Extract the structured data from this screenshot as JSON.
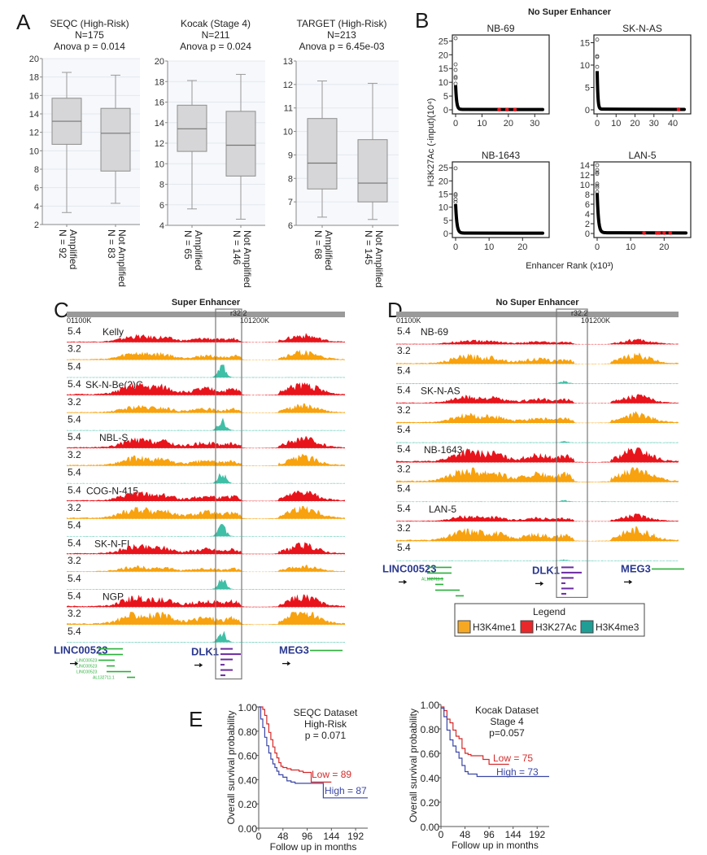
{
  "figure": {
    "panels": {
      "A": "A",
      "B": "B",
      "C": "C",
      "D": "D",
      "E": "E"
    }
  },
  "chart_data": [
    {
      "id": "A1",
      "type": "box",
      "title_lines": [
        "SEQC (High-Risk)",
        "N=175",
        "Anova p = 0.014"
      ],
      "ylim": [
        2,
        20
      ],
      "yticks": [
        2,
        4,
        6,
        8,
        10,
        12,
        14,
        16,
        18,
        20
      ],
      "grid": true,
      "groups": [
        {
          "label": "Amplified",
          "n_label": "N = 92",
          "min": 3.3,
          "q1": 10.7,
          "median": 13.2,
          "q3": 15.7,
          "max": 18.5
        },
        {
          "label": "Not Amplified",
          "n_label": "N = 83",
          "min": 4.3,
          "q1": 7.8,
          "median": 11.9,
          "q3": 14.6,
          "max": 18.2
        }
      ]
    },
    {
      "id": "A2",
      "type": "box",
      "title_lines": [
        "Kocak (Stage 4)",
        "N=211",
        "Anova p = 0.024"
      ],
      "ylim": [
        4,
        20
      ],
      "yticks": [
        4,
        6,
        8,
        10,
        12,
        14,
        16,
        18,
        20
      ],
      "grid": true,
      "groups": [
        {
          "label": "Amplified",
          "n_label": "N = 65",
          "min": 5.6,
          "q1": 11.2,
          "median": 13.4,
          "q3": 15.7,
          "max": 18.1
        },
        {
          "label": "Not Amplified",
          "n_label": "N = 146",
          "min": 4.6,
          "q1": 8.8,
          "median": 11.8,
          "q3": 15.1,
          "max": 18.7
        }
      ]
    },
    {
      "id": "A3",
      "type": "box",
      "title_lines": [
        "TARGET (High-Risk)",
        "N=213",
        "Anova p = 6.45e-03"
      ],
      "ylim": [
        6,
        13
      ],
      "yticks": [
        6,
        7,
        8,
        9,
        10,
        11,
        12,
        13
      ],
      "grid": true,
      "groups": [
        {
          "label": "Amplified",
          "n_label": "N = 68",
          "min": 6.35,
          "q1": 7.55,
          "median": 8.65,
          "q3": 10.55,
          "max": 12.15
        },
        {
          "label": "Not Amplified",
          "n_label": "N = 145",
          "min": 6.25,
          "q1": 7.0,
          "median": 7.8,
          "q3": 9.65,
          "max": 12.05
        }
      ]
    },
    {
      "id": "B",
      "type": "scatter",
      "title": "No Super Enhancer",
      "ylabel": "H3K27Ac (-input)(10⁴)",
      "xlabel": "Enhancer Rank (x10³)",
      "subplots": [
        {
          "name": "NB-69",
          "xlim": [
            0,
            33
          ],
          "xticks": [
            0,
            10,
            20,
            30
          ],
          "ylim": [
            0,
            26
          ],
          "yticks": [
            0,
            5,
            10,
            15,
            20,
            25
          ],
          "outliers": [
            26,
            16.5,
            14.5,
            12,
            11.5,
            9.5
          ],
          "knee_max": 8.8,
          "xmax": 33,
          "highlight_x": [
            16.5,
            19.5,
            22.5
          ]
        },
        {
          "name": "SK-N-AS",
          "xlim": [
            0,
            46
          ],
          "xticks": [
            0,
            10,
            20,
            30,
            40
          ],
          "ylim": [
            0,
            16
          ],
          "yticks": [
            0,
            5,
            10,
            15
          ],
          "outliers": [
            15.7,
            12,
            11.8,
            9.6
          ],
          "knee_max": 8.5,
          "xmax": 46,
          "highlight_x": [
            43
          ]
        },
        {
          "name": "NB-1643",
          "xlim": [
            0,
            26
          ],
          "xticks": [
            0,
            10,
            20
          ],
          "ylim": [
            0,
            26
          ],
          "yticks": [
            0,
            5,
            10,
            15,
            20,
            25
          ],
          "outliers": [
            24.8,
            15,
            14.5,
            13,
            12
          ],
          "knee_max": 11,
          "xmax": 26,
          "highlight_x": []
        },
        {
          "name": "LAN-5",
          "xlim": [
            0,
            26
          ],
          "xticks": [
            0,
            10,
            20
          ],
          "ylim": [
            0,
            14
          ],
          "yticks": [
            0,
            2,
            4,
            6,
            8,
            10,
            12,
            14
          ],
          "outliers": [
            14,
            13,
            12.5,
            12.2,
            10.2,
            9.8,
            9.4,
            8.5
          ],
          "knee_max": 8.2,
          "xmax": 26.5,
          "highlight_x": [
            14,
            17.8,
            18.5,
            20,
            21.8
          ]
        }
      ]
    },
    {
      "id": "C",
      "type": "area",
      "title": "Super Enhancer",
      "ruler": {
        "left_label": "01100K",
        "mid_label": "101200K",
        "band_label": "r32.2"
      },
      "samples": [
        {
          "name": "Kelly",
          "scales": [
            "5.4",
            "3.2",
            "5.4"
          ],
          "strength": [
            0.55,
            0.6,
            1.0
          ]
        },
        {
          "name": "SK-N-Be(2)C",
          "scales": [
            "5.4",
            "3.2",
            "5.4"
          ],
          "strength": [
            0.9,
            0.55,
            0.9
          ]
        },
        {
          "name": "NBL-S",
          "scales": [
            "5.4",
            "3.2",
            "5.4"
          ],
          "strength": [
            0.75,
            0.7,
            0.85
          ]
        },
        {
          "name": "COG-N-415",
          "scales": [
            "5.4",
            "3.2",
            "5.4"
          ],
          "strength": [
            0.7,
            0.9,
            0.9
          ]
        },
        {
          "name": "SK-N-FI",
          "scales": [
            "5.4",
            "3.2",
            "5.4"
          ],
          "strength": [
            0.7,
            0.45,
            1.0
          ]
        },
        {
          "name": "NGP",
          "scales": [
            "5.4",
            "3.2",
            "5.4"
          ],
          "strength": [
            0.85,
            1.0,
            0.8
          ]
        }
      ],
      "genes": {
        "left": "LINC00523",
        "center": "DLK1",
        "right": "MEG3",
        "small_labels": [
          "LINC00523",
          "LINC00523",
          "LINC00523",
          "AL132711.1"
        ]
      }
    },
    {
      "id": "D",
      "type": "area",
      "title": "No Super Enhancer",
      "ruler": {
        "left_label": "01100K",
        "mid_label": "101200K",
        "band_label": "r32.2"
      },
      "samples": [
        {
          "name": "NB-69",
          "scales": [
            "5.4",
            "3.2",
            "5.4"
          ],
          "strength": [
            0.3,
            0.6,
            0.15
          ]
        },
        {
          "name": "SK-N-AS",
          "scales": [
            "5.4",
            "3.2",
            "5.4"
          ],
          "strength": [
            0.5,
            0.6,
            0.08
          ]
        },
        {
          "name": "NB-1643",
          "scales": [
            "5.4",
            "3.2",
            "5.4"
          ],
          "strength": [
            0.85,
            0.95,
            0.08
          ]
        },
        {
          "name": "LAN-5",
          "scales": [
            "5.4",
            "3.2",
            "5.4"
          ],
          "strength": [
            0.4,
            0.8,
            0.06
          ]
        }
      ],
      "genes": {
        "left": "LINC00523",
        "center": "DLK1",
        "right": "MEG3",
        "small_labels": [
          "AL132711.1"
        ]
      },
      "legend": {
        "title": "Legend",
        "items": [
          {
            "label": "H3K4me1",
            "color": "#f7a823"
          },
          {
            "label": "H3K27Ac",
            "color": "#e8282b"
          },
          {
            "label": "H3K4me3",
            "color": "#1f9e96"
          }
        ]
      }
    },
    {
      "id": "E1",
      "type": "line",
      "title_lines": [
        "SEQC Dataset",
        "High-Risk",
        "p = 0.071"
      ],
      "xlabel": "Follow up in months",
      "ylabel": "Overall survival probability",
      "xlim": [
        0,
        216
      ],
      "xticks": [
        0,
        48,
        96,
        144,
        192
      ],
      "ylim": [
        0,
        1
      ],
      "yticks": [
        "0.00",
        "0.20",
        "0.40",
        "0.60",
        "0.80",
        "1.00"
      ],
      "series": [
        {
          "name": "Low = 89",
          "color": "#d42a2a",
          "x": [
            0,
            8,
            12,
            16,
            20,
            24,
            28,
            32,
            36,
            40,
            44,
            48,
            56,
            64,
            72,
            80,
            88,
            96,
            104,
            112,
            120,
            144
          ],
          "y": [
            1.0,
            0.98,
            0.93,
            0.86,
            0.79,
            0.73,
            0.67,
            0.62,
            0.58,
            0.54,
            0.51,
            0.5,
            0.49,
            0.48,
            0.48,
            0.47,
            0.46,
            0.46,
            0.38,
            0.38,
            0.38,
            0.38
          ]
        },
        {
          "name": "High = 87",
          "color": "#3b47a6",
          "x": [
            0,
            4,
            8,
            12,
            16,
            20,
            24,
            28,
            32,
            36,
            40,
            48,
            56,
            64,
            72,
            96,
            120,
            128,
            216
          ],
          "y": [
            1.0,
            0.9,
            0.83,
            0.75,
            0.68,
            0.62,
            0.57,
            0.53,
            0.5,
            0.47,
            0.44,
            0.42,
            0.39,
            0.38,
            0.37,
            0.37,
            0.37,
            0.25,
            0.25
          ]
        }
      ]
    },
    {
      "id": "E2",
      "type": "line",
      "title_lines": [
        "Kocak Dataset",
        "Stage 4",
        "p=0.057"
      ],
      "xlabel": "Follow up in months",
      "ylabel": "Overall survival probability",
      "xlim": [
        0,
        216
      ],
      "xticks": [
        0,
        48,
        96,
        144,
        192
      ],
      "ylim": [
        0,
        1
      ],
      "yticks": [
        "0.00",
        "0.20",
        "0.40",
        "0.60",
        "0.80",
        "1.00"
      ],
      "series": [
        {
          "name": "Low = 75",
          "color": "#d42a2a",
          "x": [
            0,
            6,
            12,
            18,
            24,
            30,
            36,
            42,
            48,
            54,
            60,
            72,
            84,
            96,
            108,
            120,
            136
          ],
          "y": [
            0.98,
            0.95,
            0.88,
            0.85,
            0.79,
            0.74,
            0.72,
            0.64,
            0.6,
            0.59,
            0.58,
            0.58,
            0.55,
            0.51,
            0.51,
            0.51,
            0.51
          ]
        },
        {
          "name": "High = 73",
          "color": "#3b47a6",
          "x": [
            0,
            6,
            12,
            18,
            24,
            30,
            36,
            42,
            48,
            54,
            60,
            72,
            96,
            144,
            216
          ],
          "y": [
            0.97,
            0.9,
            0.79,
            0.71,
            0.66,
            0.61,
            0.56,
            0.5,
            0.45,
            0.43,
            0.43,
            0.41,
            0.41,
            0.41,
            0.41
          ]
        }
      ]
    }
  ]
}
